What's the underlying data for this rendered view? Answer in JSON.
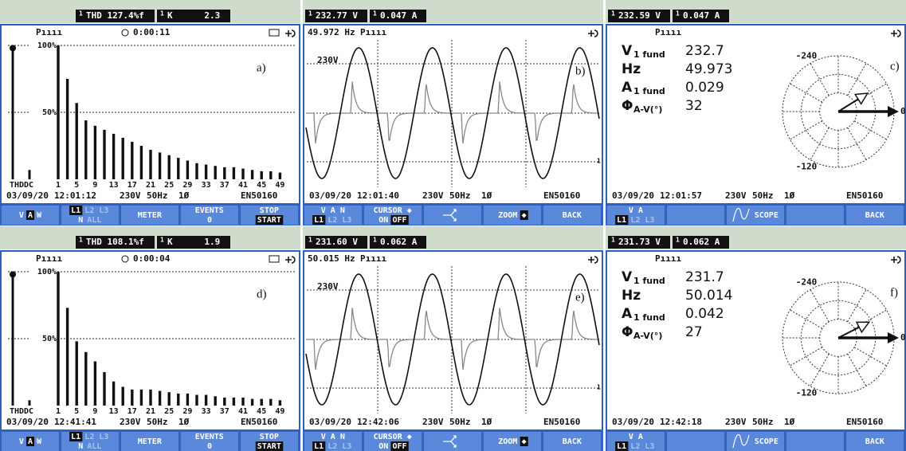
{
  "panels": [
    {
      "kind": "harmonics",
      "label": "a)",
      "header": [
        {
          "phase": "1",
          "text": "THD 127.4%f"
        },
        {
          "phase": "1",
          "text": "K      2.3"
        }
      ],
      "mode": "Pıııı",
      "timer": "0:00:11",
      "ylim": [
        0,
        100
      ],
      "yticks": [
        {
          "value": 100,
          "label": "100%"
        },
        {
          "value": 50,
          "label": "50%"
        }
      ],
      "thd_label": "THD",
      "dc_label": "DC",
      "thd_bar": 98,
      "dc_bar": 7,
      "harmonics": [
        1,
        3,
        5,
        7,
        9,
        11,
        13,
        15,
        17,
        19,
        21,
        23,
        25,
        27,
        29,
        31,
        33,
        35,
        37,
        39,
        41,
        43,
        45,
        47,
        49
      ],
      "values": [
        100,
        75,
        57,
        44,
        40,
        37,
        34,
        31,
        28,
        25,
        22,
        20,
        18,
        16,
        14,
        12,
        11,
        10,
        9,
        9,
        8,
        7,
        6,
        6,
        5
      ],
      "xticks": [
        1,
        5,
        9,
        13,
        17,
        21,
        25,
        29,
        33,
        37,
        41,
        45,
        49
      ],
      "status": {
        "date": "03/09/20",
        "time": "12:01:12",
        "nominal": "230V",
        "freq": "50Hz",
        "phase": "1Ø",
        "standard": "EN50160"
      },
      "keys": [
        {
          "rows": [
            [
              {
                "t": "V"
              },
              {
                "t": "A",
                "on": true
              },
              {
                "t": "W"
              }
            ]
          ]
        },
        {
          "rows": [
            [
              {
                "t": "L1",
                "on": true
              },
              {
                "t": "L2 L3",
                "dim": true
              }
            ],
            [
              {
                "t": "N"
              },
              {
                "t": "ALL",
                "dim": true
              }
            ]
          ]
        },
        {
          "rows": [
            [
              {
                "t": "METER"
              }
            ]
          ]
        },
        {
          "rows": [
            [
              {
                "t": "EVENTS"
              }
            ],
            [
              {
                "t": "0"
              }
            ]
          ]
        },
        {
          "rows": [
            [
              {
                "t": "STOP"
              }
            ],
            [
              {
                "t": "START",
                "on": true
              }
            ]
          ]
        }
      ]
    },
    {
      "kind": "scope",
      "label": "b)",
      "header": [
        {
          "phase": "1",
          "text": "232.77 V"
        },
        {
          "phase": "1",
          "text": "0.047 A"
        }
      ],
      "freq_text": "49.972 Hz",
      "mode": "Pıııı",
      "scale": "230V",
      "trace": "1",
      "status": {
        "date": "03/09/20",
        "time": "12:01:40",
        "nominal": "230V",
        "freq": "50Hz",
        "phase": "1Ø",
        "standard": "EN50160"
      },
      "keys": [
        {
          "rows": [
            [
              {
                "t": "V A N"
              }
            ],
            [
              {
                "t": "L1",
                "on": true
              },
              {
                "t": "L2 L3",
                "dim": true
              }
            ]
          ]
        },
        {
          "rows": [
            [
              {
                "t": "CURSOR ◆"
              }
            ],
            [
              {
                "t": "ON"
              },
              {
                "t": "OFF",
                "on": true
              }
            ]
          ]
        },
        {
          "icon": "arrows"
        },
        {
          "rows": [
            [
              {
                "t": "ZOOM"
              },
              {
                "t": "◆",
                "on": true
              }
            ]
          ]
        },
        {
          "rows": [
            [
              {
                "t": "BACK"
              }
            ]
          ]
        }
      ]
    },
    {
      "kind": "meter",
      "label": "c)",
      "header": [
        {
          "phase": "1",
          "text": "232.59 V"
        },
        {
          "phase": "1",
          "text": "0.047 A"
        }
      ],
      "mode": "Pıııı",
      "rows": [
        {
          "name": "V",
          "sub": "1 fund",
          "value": 232.7
        },
        {
          "name": "Hz",
          "value": 49.973
        },
        {
          "name": "A",
          "sub": "1 fund",
          "value": 0.029
        },
        {
          "name": "Φ",
          "sub": "A-V(°)",
          "value": 32
        }
      ],
      "angle_ticks": [
        0,
        -120,
        -240
      ],
      "status": {
        "date": "03/09/20",
        "time": "12:01:57",
        "nominal": "230V",
        "freq": "50Hz",
        "phase": "1Ø",
        "standard": "EN50160"
      },
      "keys": [
        {
          "rows": [
            [
              {
                "t": "V A"
              }
            ],
            [
              {
                "t": "L1",
                "on": true
              },
              {
                "t": "L2 L3",
                "dim": true
              }
            ]
          ]
        },
        {
          "blank": true
        },
        {
          "icon": "sine",
          "rows": [
            [
              {
                "t": "SCOPE"
              }
            ]
          ]
        },
        {
          "blank": true
        },
        {
          "rows": [
            [
              {
                "t": "BACK"
              }
            ]
          ]
        }
      ]
    },
    {
      "kind": "harmonics",
      "label": "d)",
      "header": [
        {
          "phase": "1",
          "text": "THD 108.1%f"
        },
        {
          "phase": "1",
          "text": "K      1.9"
        }
      ],
      "mode": "Pıııı",
      "timer": "0:00:04",
      "ylim": [
        0,
        100
      ],
      "yticks": [
        {
          "value": 100,
          "label": "100%"
        },
        {
          "value": 50,
          "label": "50%"
        }
      ],
      "thd_label": "THD",
      "dc_label": "DC",
      "thd_bar": 98,
      "dc_bar": 4,
      "harmonics": [
        1,
        3,
        5,
        7,
        9,
        11,
        13,
        15,
        17,
        19,
        21,
        23,
        25,
        27,
        29,
        31,
        33,
        35,
        37,
        39,
        41,
        43,
        45,
        47,
        49
      ],
      "values": [
        100,
        73,
        48,
        40,
        33,
        25,
        18,
        14,
        12,
        12,
        12,
        11,
        10,
        9,
        9,
        8,
        8,
        7,
        6,
        6,
        6,
        5,
        5,
        5,
        4
      ],
      "xticks": [
        1,
        5,
        9,
        13,
        17,
        21,
        25,
        29,
        33,
        37,
        41,
        45,
        49
      ],
      "status": {
        "date": "03/09/20",
        "time": "12:41:41",
        "nominal": "230V",
        "freq": "50Hz",
        "phase": "1Ø",
        "standard": "EN50160"
      },
      "keys": [
        {
          "rows": [
            [
              {
                "t": "V"
              },
              {
                "t": "A",
                "on": true
              },
              {
                "t": "W"
              }
            ]
          ]
        },
        {
          "rows": [
            [
              {
                "t": "L1",
                "on": true
              },
              {
                "t": "L2 L3",
                "dim": true
              }
            ],
            [
              {
                "t": "N"
              },
              {
                "t": "ALL",
                "dim": true
              }
            ]
          ]
        },
        {
          "rows": [
            [
              {
                "t": "METER"
              }
            ]
          ]
        },
        {
          "rows": [
            [
              {
                "t": "EVENTS"
              }
            ],
            [
              {
                "t": "0"
              }
            ]
          ]
        },
        {
          "rows": [
            [
              {
                "t": "STOP"
              }
            ],
            [
              {
                "t": "START",
                "on": true
              }
            ]
          ]
        }
      ]
    },
    {
      "kind": "scope",
      "label": "e)",
      "header": [
        {
          "phase": "1",
          "text": "231.60 V"
        },
        {
          "phase": "1",
          "text": "0.062 A"
        }
      ],
      "freq_text": "50.015 Hz",
      "mode": "Pıııı",
      "scale": "230V",
      "trace": "1",
      "status": {
        "date": "03/09/20",
        "time": "12:42:06",
        "nominal": "230V",
        "freq": "50Hz",
        "phase": "1Ø",
        "standard": "EN50160"
      },
      "keys": [
        {
          "rows": [
            [
              {
                "t": "V A N"
              }
            ],
            [
              {
                "t": "L1",
                "on": true
              },
              {
                "t": "L2 L3",
                "dim": true
              }
            ]
          ]
        },
        {
          "rows": [
            [
              {
                "t": "CURSOR ◆"
              }
            ],
            [
              {
                "t": "ON"
              },
              {
                "t": "OFF",
                "on": true
              }
            ]
          ]
        },
        {
          "icon": "arrows"
        },
        {
          "rows": [
            [
              {
                "t": "ZOOM"
              },
              {
                "t": "◆",
                "on": true
              }
            ]
          ]
        },
        {
          "rows": [
            [
              {
                "t": "BACK"
              }
            ]
          ]
        }
      ]
    },
    {
      "kind": "meter",
      "label": "f)",
      "header": [
        {
          "phase": "1",
          "text": "231.73 V"
        },
        {
          "phase": "1",
          "text": "0.062 A"
        }
      ],
      "mode": "Pıııı",
      "rows": [
        {
          "name": "V",
          "sub": "1 fund",
          "value": 231.7
        },
        {
          "name": "Hz",
          "value": 50.014
        },
        {
          "name": "A",
          "sub": "1 fund",
          "value": 0.042
        },
        {
          "name": "Φ",
          "sub": "A-V(°)",
          "value": 27
        }
      ],
      "angle_ticks": [
        0,
        -120,
        -240
      ],
      "status": {
        "date": "03/09/20",
        "time": "12:42:18",
        "nominal": "230V",
        "freq": "50Hz",
        "phase": "1Ø",
        "standard": "EN50160"
      },
      "keys": [
        {
          "rows": [
            [
              {
                "t": "V A"
              }
            ],
            [
              {
                "t": "L1",
                "on": true
              },
              {
                "t": "L2 L3",
                "dim": true
              }
            ]
          ]
        },
        {
          "blank": true
        },
        {
          "icon": "sine",
          "rows": [
            [
              {
                "t": "SCOPE"
              }
            ]
          ]
        },
        {
          "blank": true
        },
        {
          "rows": [
            [
              {
                "t": "BACK"
              }
            ]
          ]
        }
      ]
    }
  ]
}
